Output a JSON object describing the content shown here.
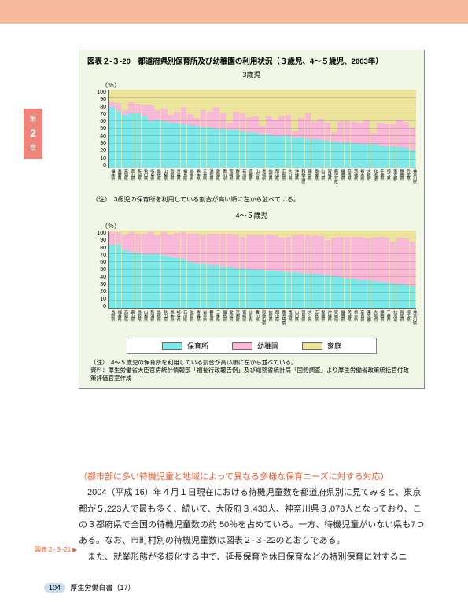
{
  "page": {
    "number": "104",
    "source": "厚生労働白書（17）"
  },
  "sideTab": {
    "top": "第",
    "num": "2",
    "bot": "章"
  },
  "marginRef": "図表２-３-21",
  "figure": {
    "title": "図表２-３-20　都道府県別保育所及び幼稚園の利用状況（３歳児、4～５歳児、2003年）",
    "chart1": {
      "subtitle": "3歳児",
      "yLabel": "（％）",
      "yTicks": [
        "100",
        "90",
        "80",
        "70",
        "60",
        "50",
        "40",
        "30",
        "20",
        "10",
        "0"
      ],
      "gridStep": 10,
      "colors": {
        "hoikusho": "#7de8e8",
        "youchien": "#f9b8d8",
        "katei": "#ece49b"
      },
      "categories": [
        "福井県",
        "長野県",
        "高知県",
        "富山県",
        "新潟県",
        "秋田県",
        "岐阜県",
        "島根県",
        "山梨県",
        "鳥取県",
        "青森県",
        "福島県",
        "岩手県",
        "熊本県",
        "三重県",
        "滋賀県",
        "愛知県",
        "香川県",
        "宮崎県",
        "群馬県",
        "石川県",
        "京都府",
        "山形県",
        "長崎県",
        "佐賀県",
        "岡山県",
        "広島県",
        "大分県",
        "沖縄県",
        "和歌山県",
        "徳島県",
        "愛媛県",
        "山口県",
        "宮城県",
        "鹿児島県",
        "福岡県",
        "奈良県",
        "茨城県",
        "栃木県",
        "大阪府",
        "北海道",
        "千葉県",
        "埼玉県",
        "東京都",
        "静岡県",
        "兵庫県",
        "神奈川県"
      ],
      "data": [
        [
          78,
          7
        ],
        [
          73,
          10
        ],
        [
          68,
          6
        ],
        [
          70,
          14
        ],
        [
          70,
          12
        ],
        [
          66,
          14
        ],
        [
          60,
          20
        ],
        [
          62,
          12
        ],
        [
          60,
          16
        ],
        [
          58,
          10
        ],
        [
          58,
          14
        ],
        [
          56,
          22
        ],
        [
          55,
          14
        ],
        [
          54,
          10
        ],
        [
          52,
          22
        ],
        [
          52,
          20
        ],
        [
          50,
          28
        ],
        [
          50,
          20
        ],
        [
          48,
          10
        ],
        [
          48,
          24
        ],
        [
          46,
          24
        ],
        [
          45,
          20
        ],
        [
          44,
          22
        ],
        [
          42,
          12
        ],
        [
          42,
          24
        ],
        [
          40,
          22
        ],
        [
          40,
          26
        ],
        [
          40,
          28
        ],
        [
          38,
          8
        ],
        [
          38,
          26
        ],
        [
          36,
          34
        ],
        [
          36,
          24
        ],
        [
          35,
          28
        ],
        [
          34,
          24
        ],
        [
          33,
          12
        ],
        [
          32,
          28
        ],
        [
          32,
          28
        ],
        [
          31,
          28
        ],
        [
          30,
          28
        ],
        [
          30,
          32
        ],
        [
          30,
          14
        ],
        [
          28,
          30
        ],
        [
          27,
          30
        ],
        [
          27,
          30
        ],
        [
          26,
          36
        ],
        [
          25,
          34
        ],
        [
          22,
          30
        ]
      ],
      "note": "（注）　3歳児の保育所を利用している割合が高い順に左から並べている。"
    },
    "chart2": {
      "subtitle": "4～５歳児",
      "yLabel": "（％）",
      "yTicks": [
        "100",
        "90",
        "80",
        "70",
        "60",
        "50",
        "40",
        "30",
        "20",
        "10",
        "0"
      ],
      "gridStep": 10,
      "colors": {
        "hoikusho": "#7de8e8",
        "youchien": "#f9b8d8",
        "katei": "#ece49b"
      },
      "categories": [
        "長野県",
        "福井県",
        "高知県",
        "富山県",
        "鳥取県",
        "山梨県",
        "新潟県",
        "島根県",
        "秋田県",
        "熊本県",
        "岐阜県",
        "石川県",
        "滋賀県",
        "青森県",
        "岩手県",
        "群馬県",
        "三重県",
        "福島県",
        "愛知県",
        "京都府",
        "宮崎県",
        "山形県",
        "香川県",
        "和歌山県",
        "佐賀県",
        "岡山県",
        "鹿児島県",
        "長崎県",
        "山口県",
        "徳島県",
        "大分県",
        "広島県",
        "愛媛県",
        "沖縄県",
        "宮城県",
        "福岡県",
        "茨城県",
        "栃木県",
        "奈良県",
        "東京都",
        "大阪府",
        "静岡県",
        "千葉県",
        "北海道",
        "兵庫県",
        "埼玉県",
        "神奈川県"
      ],
      "data": [
        [
          82,
          16
        ],
        [
          82,
          16
        ],
        [
          75,
          20
        ],
        [
          72,
          26
        ],
        [
          72,
          24
        ],
        [
          70,
          26
        ],
        [
          70,
          28
        ],
        [
          70,
          24
        ],
        [
          68,
          30
        ],
        [
          67,
          28
        ],
        [
          65,
          32
        ],
        [
          64,
          34
        ],
        [
          60,
          36
        ],
        [
          58,
          38
        ],
        [
          58,
          36
        ],
        [
          56,
          40
        ],
        [
          56,
          40
        ],
        [
          54,
          42
        ],
        [
          54,
          42
        ],
        [
          52,
          42
        ],
        [
          52,
          40
        ],
        [
          51,
          44
        ],
        [
          50,
          44
        ],
        [
          50,
          44
        ],
        [
          49,
          46
        ],
        [
          48,
          46
        ],
        [
          47,
          44
        ],
        [
          46,
          46
        ],
        [
          46,
          48
        ],
        [
          45,
          50
        ],
        [
          44,
          50
        ],
        [
          44,
          50
        ],
        [
          43,
          50
        ],
        [
          42,
          46
        ],
        [
          41,
          50
        ],
        [
          40,
          52
        ],
        [
          38,
          54
        ],
        [
          38,
          54
        ],
        [
          36,
          56
        ],
        [
          36,
          54
        ],
        [
          35,
          56
        ],
        [
          34,
          58
        ],
        [
          33,
          58
        ],
        [
          32,
          54
        ],
        [
          31,
          60
        ],
        [
          30,
          60
        ],
        [
          28,
          58
        ]
      ]
    },
    "legend": {
      "items": [
        {
          "label": "保育所",
          "colorKey": "hoikusho"
        },
        {
          "label": "幼稚園",
          "colorKey": "youchien"
        },
        {
          "label": "家庭",
          "colorKey": "katei"
        }
      ]
    },
    "sourceNote": "（注）　4～５歳児の保育所を利用している割合が高い順に左から並べている。\n資料：厚生労働省大臣官房統計情報部「福祉行政報告例」及び総務省統計局「国勢調査」より厚生労働省政策統括官付政策評価官室作成"
  },
  "body": {
    "heading": "（都市部に多い待機児童と地域によって異なる多様な保育ニーズに対する対応）",
    "p1": "　2004（平成 16）年４月１日現在における待機児童数を都道府県別に見てみると、東京都が５,223人で最も多く、続いて、大阪府３,430人、神奈川県３,078人となっており、この３都府県で全国の待機児童数の約 50％を占めている。一方、待機児童がいない県も7つある。なお、市町村別の待機児童数は図表２-３-22のとおりである。",
    "p2": "　また、就業形態が多様化する中で、延長保育や休日保育などの特別保育に対するニ"
  }
}
